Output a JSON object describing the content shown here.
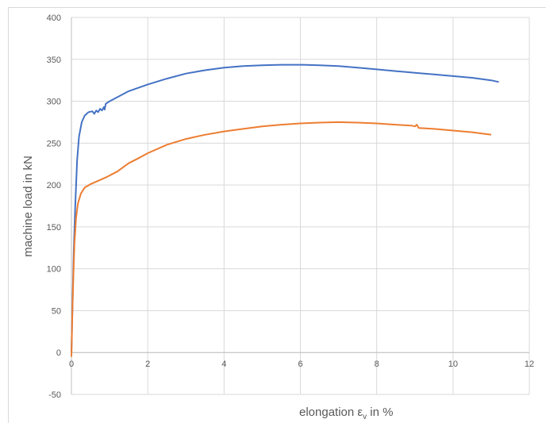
{
  "chart_data": {
    "type": "line",
    "xlabel": "elongation εv in %",
    "ylabel": "machine load in kN",
    "xlabel_parts": {
      "prefix": "elongation ε",
      "subscript": "v",
      "suffix": " in %"
    },
    "xlim": [
      0,
      12
    ],
    "ylim": [
      -50,
      400
    ],
    "x_ticks": [
      0,
      2,
      4,
      6,
      8,
      10,
      12
    ],
    "y_ticks": [
      -50,
      0,
      50,
      100,
      150,
      200,
      250,
      300,
      350,
      400
    ],
    "grid": true,
    "legend": "none",
    "series": [
      {
        "color": "#4472c4",
        "points": [
          [
            0,
            0
          ],
          [
            0.03,
            60
          ],
          [
            0.06,
            120
          ],
          [
            0.1,
            175
          ],
          [
            0.15,
            230
          ],
          [
            0.2,
            258
          ],
          [
            0.27,
            275
          ],
          [
            0.35,
            283
          ],
          [
            0.45,
            287
          ],
          [
            0.55,
            288
          ],
          [
            0.6,
            285
          ],
          [
            0.65,
            289
          ],
          [
            0.7,
            287
          ],
          [
            0.75,
            291
          ],
          [
            0.8,
            289
          ],
          [
            0.85,
            293
          ],
          [
            0.87,
            290
          ],
          [
            0.9,
            297
          ],
          [
            1.0,
            300
          ],
          [
            1.5,
            312
          ],
          [
            2,
            320
          ],
          [
            2.5,
            327
          ],
          [
            3,
            333
          ],
          [
            3.5,
            337
          ],
          [
            4,
            340
          ],
          [
            4.5,
            342
          ],
          [
            5,
            343
          ],
          [
            5.5,
            343.5
          ],
          [
            6,
            343.5
          ],
          [
            6.5,
            343
          ],
          [
            7,
            342
          ],
          [
            7.5,
            340
          ],
          [
            8,
            338
          ],
          [
            8.5,
            336
          ],
          [
            9,
            334
          ],
          [
            9.5,
            332
          ],
          [
            10,
            330
          ],
          [
            10.5,
            328
          ],
          [
            11,
            325
          ],
          [
            11.2,
            323
          ]
        ]
      },
      {
        "color": "#ed7d31",
        "points": [
          [
            0,
            -5
          ],
          [
            0.02,
            40
          ],
          [
            0.05,
            90
          ],
          [
            0.08,
            130
          ],
          [
            0.12,
            160
          ],
          [
            0.17,
            178
          ],
          [
            0.25,
            190
          ],
          [
            0.35,
            197
          ],
          [
            0.5,
            201
          ],
          [
            0.7,
            205
          ],
          [
            0.9,
            209
          ],
          [
            1.2,
            216
          ],
          [
            1.5,
            226
          ],
          [
            1.8,
            233
          ],
          [
            2,
            238
          ],
          [
            2.5,
            248
          ],
          [
            3,
            255
          ],
          [
            3.5,
            260
          ],
          [
            4,
            264
          ],
          [
            4.5,
            267
          ],
          [
            5,
            270
          ],
          [
            5.5,
            272
          ],
          [
            6,
            273.5
          ],
          [
            6.5,
            274.5
          ],
          [
            7,
            275
          ],
          [
            7.5,
            274.5
          ],
          [
            8,
            273.5
          ],
          [
            8.5,
            272
          ],
          [
            8.9,
            271
          ],
          [
            9,
            270
          ],
          [
            9.05,
            272
          ],
          [
            9.1,
            268
          ],
          [
            9.5,
            267
          ],
          [
            10,
            265
          ],
          [
            10.5,
            263
          ],
          [
            11,
            260
          ]
        ]
      }
    ]
  }
}
